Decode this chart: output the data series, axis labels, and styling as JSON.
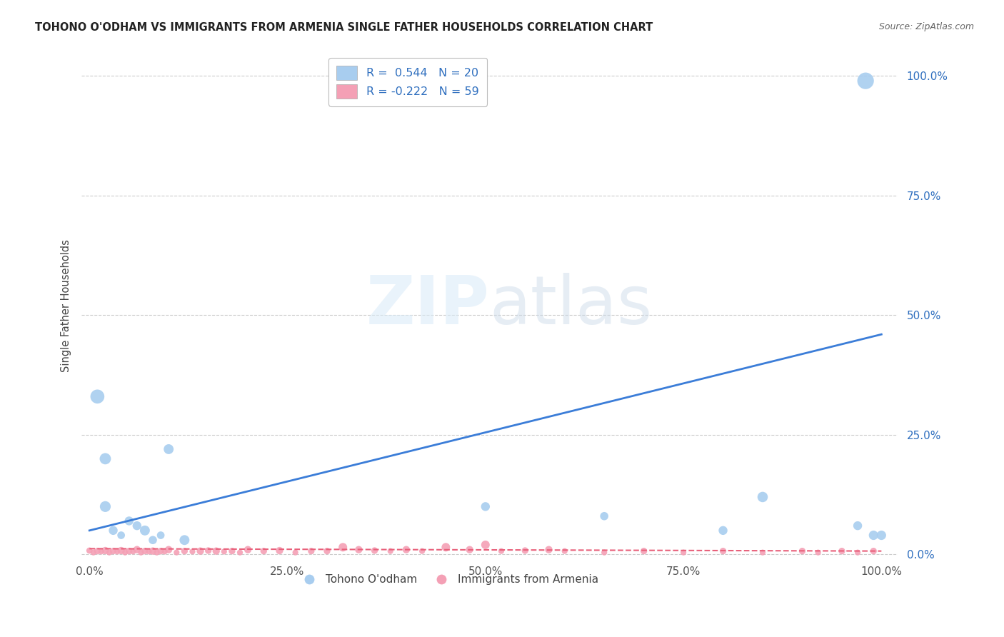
{
  "title": "TOHONO O'ODHAM VS IMMIGRANTS FROM ARMENIA SINGLE FATHER HOUSEHOLDS CORRELATION CHART",
  "source": "Source: ZipAtlas.com",
  "ylabel": "Single Father Households",
  "watermark": "ZIPatlas",
  "xlim": [
    -0.01,
    1.02
  ],
  "ylim": [
    -0.01,
    1.05
  ],
  "xticks": [
    0.0,
    0.25,
    0.5,
    0.75,
    1.0
  ],
  "yticks": [
    0.0,
    0.25,
    0.5,
    0.75,
    1.0
  ],
  "blue_color": "#A8CDEF",
  "pink_color": "#F4A0B5",
  "blue_line_color": "#3B7DD8",
  "pink_line_color": "#E8607A",
  "blue_R": 0.544,
  "pink_R": -0.222,
  "blue_N": 20,
  "pink_N": 59,
  "legend_label_blue": "Tohono O'odham",
  "legend_label_pink": "Immigrants from Armenia",
  "blue_line_x0": 0.0,
  "blue_line_y0": 0.05,
  "blue_line_x1": 1.0,
  "blue_line_y1": 0.46,
  "pink_line_x0": 0.0,
  "pink_line_y0": 0.012,
  "pink_line_x1": 1.0,
  "pink_line_y1": 0.007,
  "blue_scatter_x": [
    0.01,
    0.02,
    0.03,
    0.04,
    0.05,
    0.06,
    0.07,
    0.02,
    0.08,
    0.09,
    0.1,
    0.12,
    0.5,
    0.65,
    0.8,
    0.85,
    0.97,
    0.98,
    0.99,
    1.0
  ],
  "blue_scatter_y": [
    0.33,
    0.1,
    0.05,
    0.04,
    0.07,
    0.06,
    0.05,
    0.2,
    0.03,
    0.04,
    0.22,
    0.03,
    0.1,
    0.08,
    0.05,
    0.12,
    0.06,
    0.99,
    0.04,
    0.04
  ],
  "blue_scatter_sizes": [
    200,
    120,
    80,
    60,
    80,
    80,
    100,
    130,
    70,
    60,
    100,
    100,
    80,
    70,
    80,
    110,
    80,
    280,
    90,
    90
  ],
  "pink_scatter_x": [
    0.0,
    0.005,
    0.01,
    0.015,
    0.02,
    0.025,
    0.03,
    0.035,
    0.04,
    0.045,
    0.05,
    0.055,
    0.06,
    0.065,
    0.07,
    0.075,
    0.08,
    0.085,
    0.09,
    0.095,
    0.1,
    0.11,
    0.12,
    0.13,
    0.14,
    0.15,
    0.16,
    0.17,
    0.18,
    0.19,
    0.2,
    0.22,
    0.24,
    0.26,
    0.28,
    0.3,
    0.32,
    0.34,
    0.36,
    0.38,
    0.4,
    0.42,
    0.45,
    0.48,
    0.5,
    0.52,
    0.55,
    0.58,
    0.6,
    0.65,
    0.7,
    0.75,
    0.8,
    0.85,
    0.9,
    0.92,
    0.95,
    0.97,
    0.99
  ],
  "pink_scatter_y": [
    0.008,
    0.004,
    0.007,
    0.006,
    0.008,
    0.004,
    0.007,
    0.006,
    0.008,
    0.004,
    0.007,
    0.006,
    0.01,
    0.004,
    0.007,
    0.006,
    0.007,
    0.004,
    0.007,
    0.006,
    0.01,
    0.004,
    0.007,
    0.006,
    0.007,
    0.008,
    0.007,
    0.006,
    0.007,
    0.004,
    0.01,
    0.007,
    0.008,
    0.004,
    0.007,
    0.007,
    0.015,
    0.01,
    0.008,
    0.007,
    0.01,
    0.007,
    0.015,
    0.01,
    0.02,
    0.007,
    0.008,
    0.01,
    0.007,
    0.004,
    0.007,
    0.004,
    0.007,
    0.004,
    0.007,
    0.004,
    0.007,
    0.004,
    0.007
  ],
  "pink_scatter_sizes": [
    40,
    35,
    45,
    35,
    55,
    35,
    45,
    35,
    55,
    35,
    45,
    35,
    55,
    35,
    45,
    35,
    55,
    35,
    45,
    35,
    55,
    35,
    45,
    35,
    55,
    45,
    55,
    35,
    45,
    35,
    55,
    45,
    55,
    35,
    45,
    45,
    75,
    55,
    45,
    35,
    55,
    35,
    75,
    55,
    75,
    35,
    45,
    55,
    35,
    35,
    45,
    35,
    45,
    35,
    45,
    35,
    45,
    35,
    45
  ],
  "background_color": "#FFFFFF",
  "grid_color": "#CCCCCC",
  "tick_color_y": "#2F6FBF",
  "tick_color_x": "#555555"
}
